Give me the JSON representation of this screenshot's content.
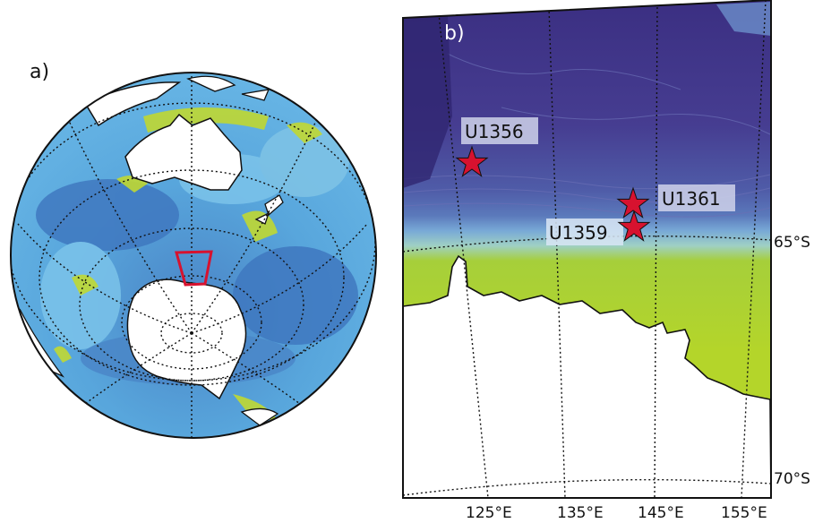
{
  "panels": {
    "a_label": "a)",
    "b_label": "b)"
  },
  "sites": [
    {
      "name": "U1356",
      "lon": 124.5,
      "lat": -63.3
    },
    {
      "name": "U1361",
      "lon": 140.6,
      "lat": -64.4
    },
    {
      "name": "U1359",
      "lon": 140.6,
      "lat": -64.8
    }
  ],
  "axes": {
    "lon_ticks": [
      "125°E",
      "135°E",
      "145°E",
      "155°E"
    ],
    "lat_ticks": [
      "65°S",
      "70°S"
    ]
  },
  "colors": {
    "ice": "#ffffff",
    "star": "#d7122f",
    "deep_ocean": "#3a3380",
    "mid_ocean": "#4f5fa8",
    "shelf_green": "#a6cf3a",
    "light_blue": "#66b6e6",
    "box_red": "#d7122f"
  }
}
